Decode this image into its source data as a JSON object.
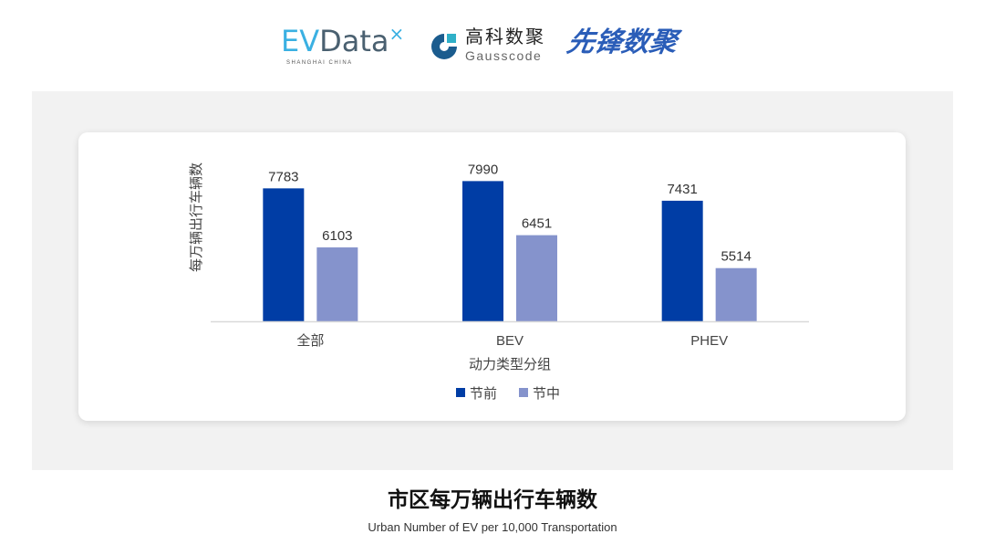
{
  "logos": {
    "evdata": "EVData",
    "evdata_sub": "SHANGHAI CHINA",
    "gausscode_cn": "高科数聚",
    "gausscode_en": "Gausscode",
    "xianfeng": "先锋数聚"
  },
  "title": "市区每万辆出行车辆数",
  "subtitle": "Urban Number of EV per 10,000 Transportation",
  "colors": {
    "series1": "#003da5",
    "series2": "#8593cc",
    "panel": "#f2f2f2"
  },
  "chart_data": {
    "type": "bar",
    "categories": [
      "全部",
      "BEV",
      "PHEV"
    ],
    "series": [
      {
        "name": "节前",
        "values": [
          7783,
          7990,
          7431
        ]
      },
      {
        "name": "节中",
        "values": [
          6103,
          6451,
          5514
        ]
      }
    ],
    "xlabel": "动力类型分组",
    "ylabel": "每万辆出行车辆数",
    "ylim": [
      4000,
      9000
    ],
    "grid": false,
    "legend": "bottom"
  }
}
